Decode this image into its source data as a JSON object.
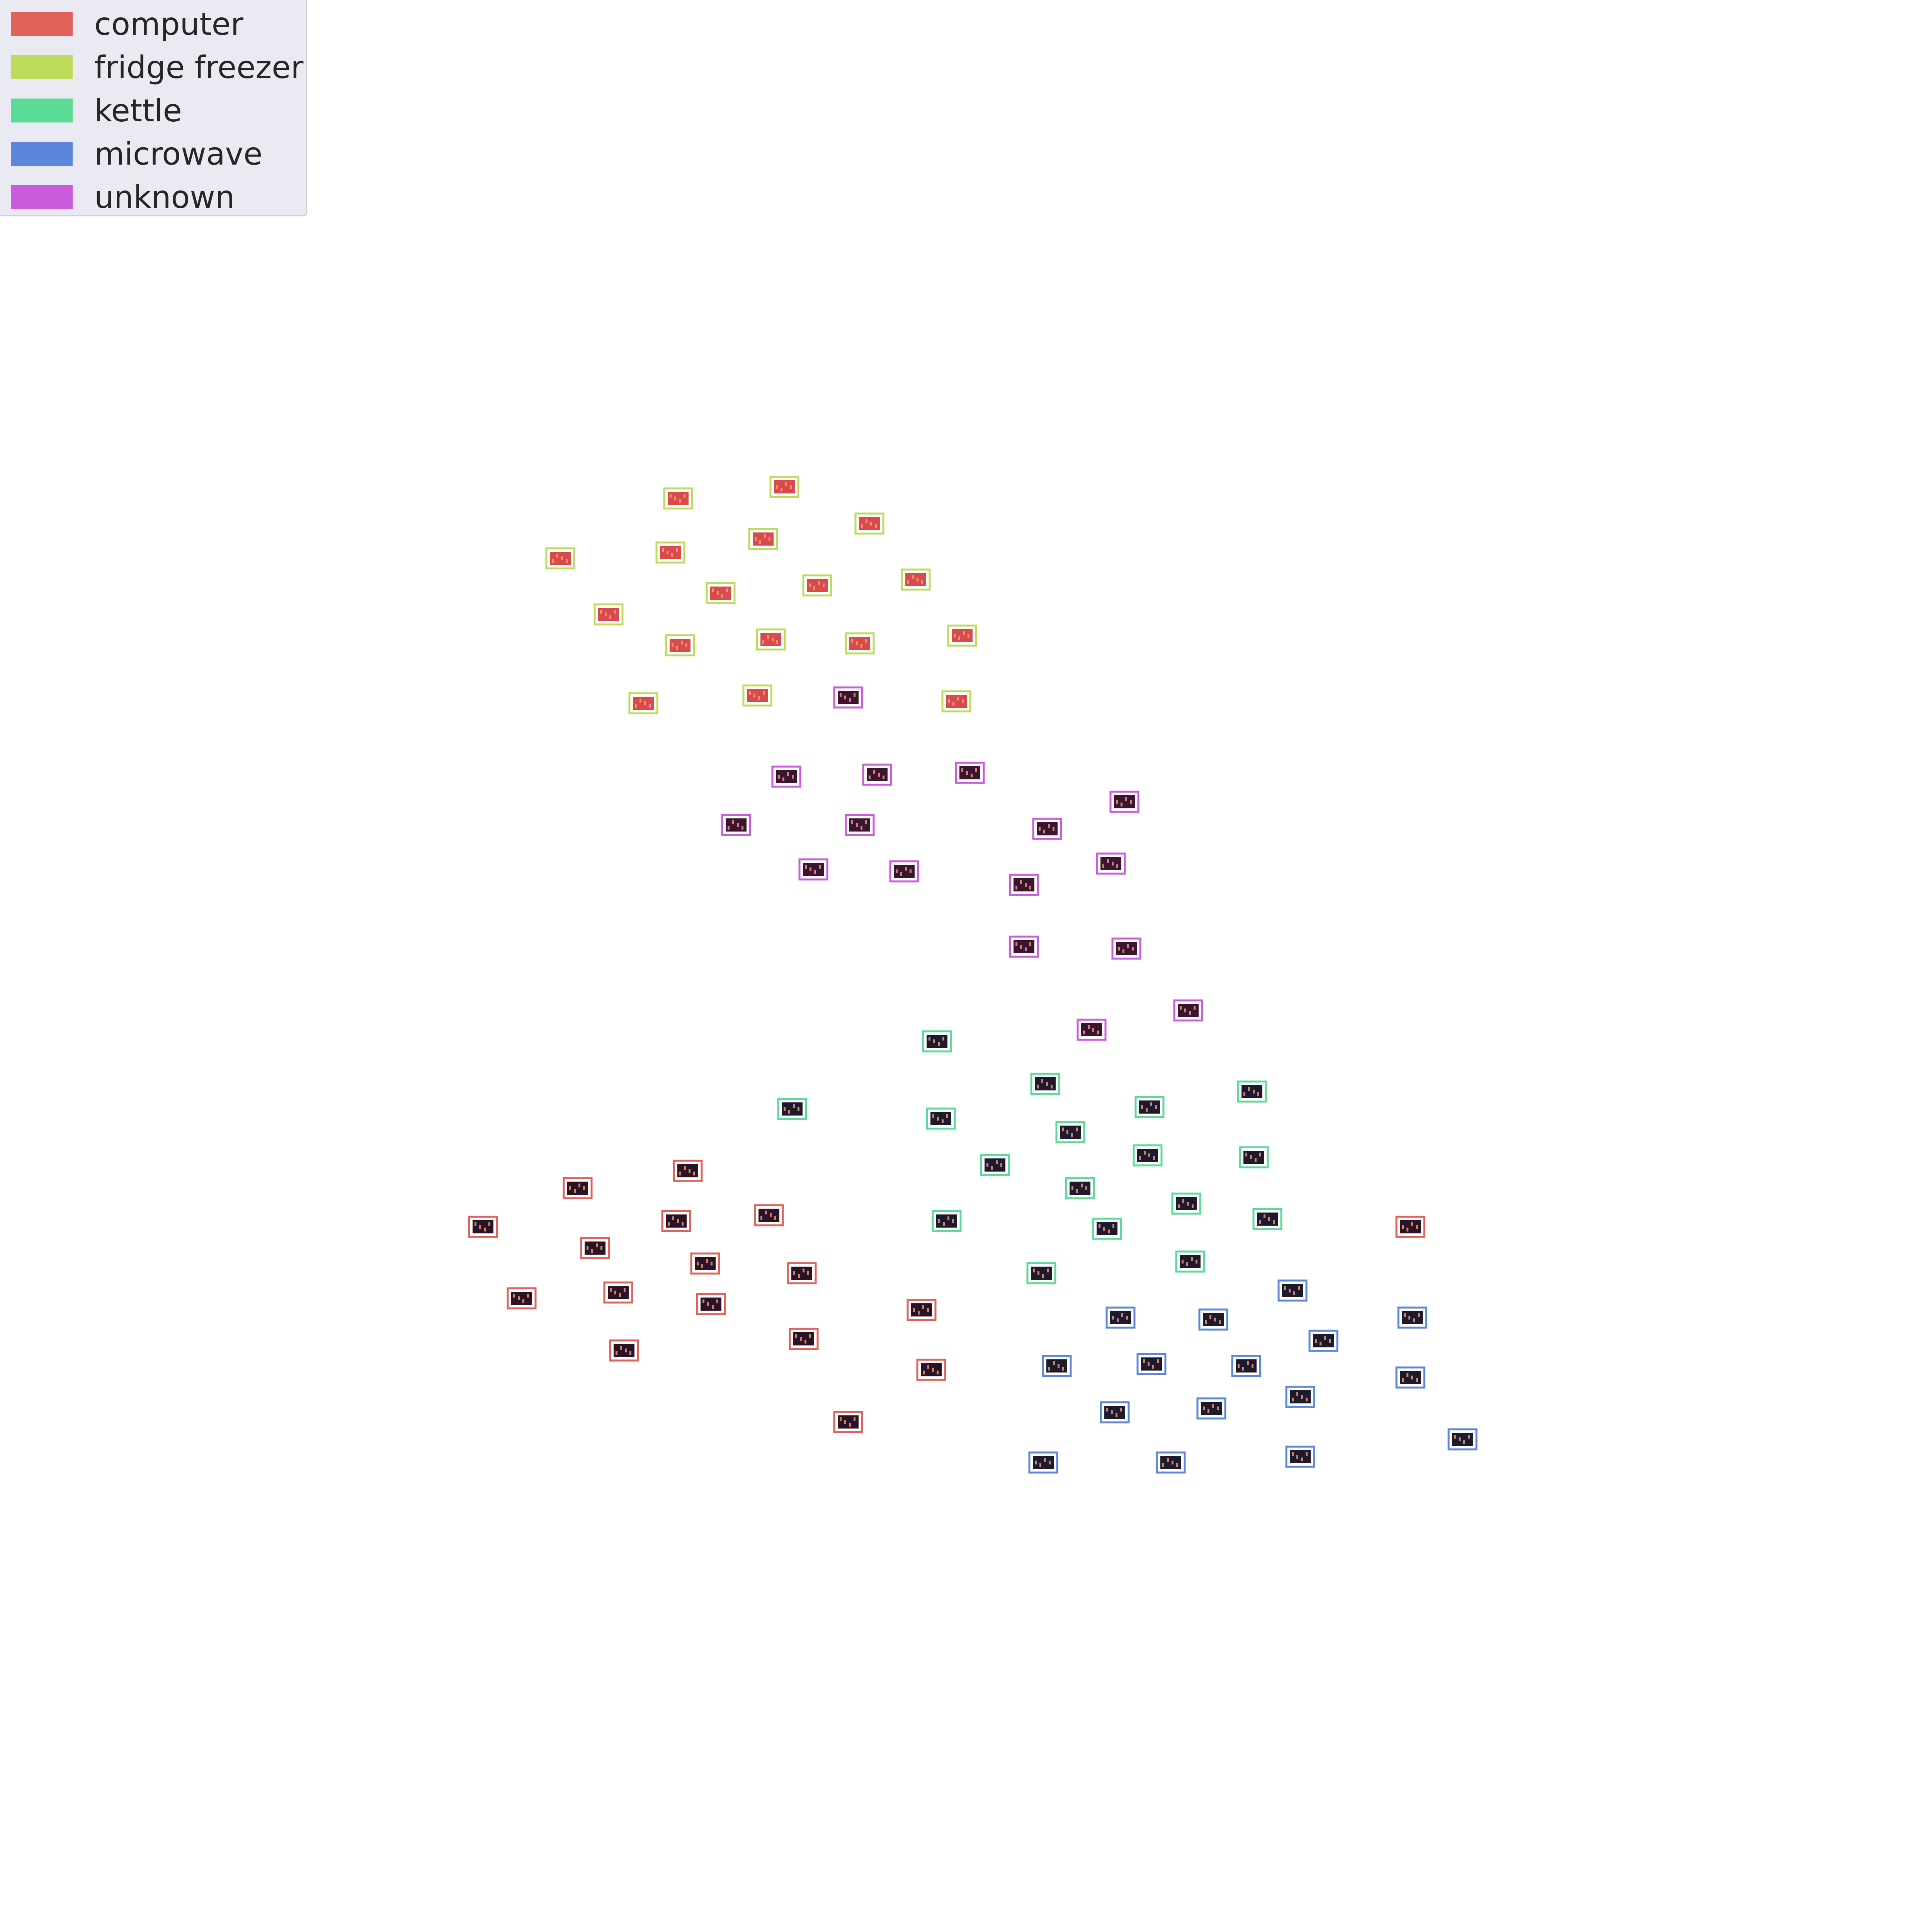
{
  "chart_data": {
    "type": "scatter",
    "title": "",
    "xlabel": "",
    "ylabel": "",
    "grid": false,
    "axes_visible": false,
    "marker": "thumbnail-image",
    "legend": {
      "placement": "top-left",
      "entries": [
        {
          "label": "computer",
          "color": "#e0625a"
        },
        {
          "label": "fridge freezer",
          "color": "#bddc5a"
        },
        {
          "label": "kettle",
          "color": "#5adc96"
        },
        {
          "label": "microwave",
          "color": "#5a87dc"
        },
        {
          "label": "unknown",
          "color": "#cc5adc"
        }
      ]
    },
    "xlim": [
      0,
      1
    ],
    "ylim": [
      0,
      1
    ],
    "series": [
      {
        "name": "computer",
        "color": "#e0625a",
        "thumb_fill": "#2b1325",
        "x": [
          0.25,
          0.299,
          0.356,
          0.27,
          0.308,
          0.35,
          0.32,
          0.365,
          0.398,
          0.368,
          0.415,
          0.323,
          0.416,
          0.477,
          0.482,
          0.439,
          0.73
        ],
        "y": [
          0.365,
          0.385,
          0.394,
          0.328,
          0.354,
          0.368,
          0.331,
          0.346,
          0.371,
          0.325,
          0.341,
          0.301,
          0.307,
          0.322,
          0.291,
          0.264,
          0.365
        ]
      },
      {
        "name": "fridge freezer",
        "color": "#bddc5a",
        "thumb_fill": "#d94a4a",
        "x": [
          0.351,
          0.406,
          0.29,
          0.347,
          0.395,
          0.45,
          0.373,
          0.423,
          0.474,
          0.315,
          0.352,
          0.399,
          0.445,
          0.498,
          0.333,
          0.392,
          0.495
        ],
        "y": [
          0.742,
          0.748,
          0.711,
          0.714,
          0.721,
          0.729,
          0.693,
          0.697,
          0.7,
          0.682,
          0.666,
          0.669,
          0.667,
          0.671,
          0.636,
          0.64,
          0.637
        ]
      },
      {
        "name": "unknown",
        "color": "#cc5adc",
        "thumb_fill": "#3a1430",
        "x": [
          0.439,
          0.407,
          0.454,
          0.502,
          0.582,
          0.381,
          0.445,
          0.542,
          0.575,
          0.421,
          0.468,
          0.53,
          0.53,
          0.583,
          0.565,
          0.615
        ],
        "y": [
          0.639,
          0.598,
          0.599,
          0.6,
          0.585,
          0.573,
          0.573,
          0.571,
          0.553,
          0.55,
          0.549,
          0.542,
          0.51,
          0.509,
          0.467,
          0.477
        ]
      },
      {
        "name": "kettle",
        "color": "#5adc96",
        "thumb_fill": "#1d1a2e",
        "x": [
          0.485,
          0.41,
          0.541,
          0.487,
          0.595,
          0.648,
          0.554,
          0.515,
          0.594,
          0.649,
          0.559,
          0.614,
          0.573,
          0.49,
          0.656,
          0.539,
          0.616
        ],
        "y": [
          0.461,
          0.426,
          0.439,
          0.421,
          0.427,
          0.435,
          0.414,
          0.397,
          0.402,
          0.401,
          0.385,
          0.377,
          0.364,
          0.368,
          0.369,
          0.341,
          0.347
        ]
      },
      {
        "name": "microwave",
        "color": "#5a87dc",
        "thumb_fill": "#1d1a2e",
        "x": [
          0.669,
          0.58,
          0.628,
          0.731,
          0.685,
          0.547,
          0.596,
          0.645,
          0.73,
          0.577,
          0.627,
          0.673,
          0.757,
          0.54,
          0.606,
          0.673
        ],
        "y": [
          0.332,
          0.318,
          0.317,
          0.318,
          0.306,
          0.293,
          0.294,
          0.293,
          0.287,
          0.269,
          0.271,
          0.277,
          0.255,
          0.243,
          0.243,
          0.246
        ]
      }
    ]
  }
}
